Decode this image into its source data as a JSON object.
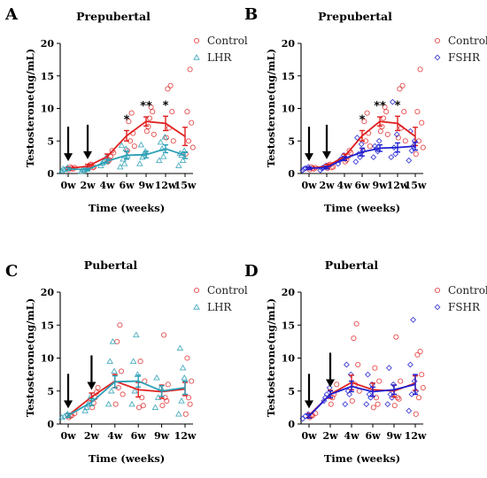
{
  "chart_data": [
    {
      "type": "line",
      "panel_label": "A",
      "title": "Prepubertal",
      "xlabel": "Time (weeks)",
      "ylabel": "Testosterone(ng/mL)",
      "ylim": [
        0,
        20
      ],
      "yticks": [
        "0",
        "5",
        "10",
        "15",
        "20"
      ],
      "categories": [
        "0w",
        "2w",
        "4w",
        "6w",
        "9w",
        "12w",
        "15w"
      ],
      "arrows_at": [
        "0w",
        "2w"
      ],
      "series": [
        {
          "name": "Control",
          "color": "#e02020",
          "marker": "circle",
          "values": [
            0.8,
            1.1,
            2.6,
            5.8,
            8.0,
            7.7,
            5.7
          ],
          "errors": [
            0.2,
            0.3,
            0.4,
            0.8,
            0.7,
            1.1,
            1.4
          ],
          "points": [
            [
              0.6,
              0.8,
              0.9,
              1.0,
              0.7
            ],
            [
              0.8,
              1.4,
              1.0,
              1.3,
              0.9
            ],
            [
              1.8,
              2.6,
              3.2,
              2.1,
              3.5
            ],
            [
              3.5,
              5.0,
              6.2,
              8.0,
              9.3,
              4.2
            ],
            [
              6.5,
              8.5,
              9.5,
              7.2,
              10.2,
              6.0
            ],
            [
              5.5,
              7.0,
              9.5,
              13.0,
              13.5,
              5.0
            ],
            [
              3.0,
              5.0,
              7.8,
              9.5,
              16.0,
              4.0
            ]
          ]
        },
        {
          "name": "LHR",
          "color": "#2a9fb5",
          "marker": "triangle",
          "values": [
            0.7,
            0.6,
            1.9,
            2.8,
            2.9,
            3.8,
            2.8
          ],
          "errors": [
            0.2,
            0.2,
            0.3,
            0.6,
            0.5,
            0.6,
            0.5
          ],
          "points": [
            [
              0.4,
              0.6,
              0.9,
              0.7
            ],
            [
              0.3,
              0.5,
              0.8,
              0.6
            ],
            [
              1.2,
              1.8,
              2.5,
              1.6
            ],
            [
              1.0,
              2.2,
              3.8,
              4.3,
              1.5,
              2.7
            ],
            [
              1.5,
              2.5,
              3.4,
              4.4,
              3.0
            ],
            [
              2.0,
              3.8,
              5.6,
              4.8,
              2.6
            ],
            [
              1.2,
              2.8,
              3.5,
              3.1,
              2.0
            ]
          ]
        }
      ],
      "annotations": [
        {
          "at": "6w",
          "text": "*"
        },
        {
          "at": "9w",
          "text": "**"
        },
        {
          "at": "12w",
          "text": "*"
        }
      ]
    },
    {
      "type": "line",
      "panel_label": "B",
      "title": "Prepubertal",
      "xlabel": "Time (weeks)",
      "ylabel": "Testosterone(ng/mL)",
      "ylim": [
        0,
        20
      ],
      "yticks": [
        "0",
        "5",
        "10",
        "15",
        "20"
      ],
      "categories": [
        "0w",
        "2w",
        "4w",
        "6w",
        "9w",
        "12w",
        "15w"
      ],
      "arrows_at": [
        "0w",
        "2w"
      ],
      "series": [
        {
          "name": "Control",
          "color": "#e02020",
          "marker": "circle",
          "values": [
            0.8,
            1.1,
            2.6,
            5.8,
            8.0,
            7.7,
            5.7
          ],
          "errors": [
            0.2,
            0.3,
            0.4,
            0.8,
            0.7,
            1.1,
            1.4
          ],
          "points": [
            [
              0.6,
              0.8,
              0.9,
              1.0,
              0.7
            ],
            [
              0.8,
              1.4,
              1.0,
              1.3,
              0.9
            ],
            [
              1.8,
              2.6,
              3.2,
              2.1,
              3.5
            ],
            [
              3.5,
              5.0,
              6.2,
              8.0,
              9.3,
              4.2
            ],
            [
              6.5,
              8.5,
              9.5,
              7.2,
              10.2,
              6.0
            ],
            [
              5.5,
              7.0,
              9.5,
              13.0,
              13.5,
              5.0
            ],
            [
              3.0,
              5.0,
              7.8,
              9.5,
              16.0,
              4.0
            ]
          ]
        },
        {
          "name": "FSHR",
          "color": "#1f1fd0",
          "marker": "diamond",
          "values": [
            0.8,
            0.9,
            2.3,
            3.3,
            3.9,
            4.0,
            4.2
          ],
          "errors": [
            0.2,
            0.2,
            0.3,
            0.6,
            0.5,
            0.7,
            0.6
          ],
          "points": [
            [
              0.5,
              0.8,
              1.0,
              0.7
            ],
            [
              0.5,
              0.9,
              1.2,
              0.8
            ],
            [
              1.5,
              2.2,
              2.8,
              2.0
            ],
            [
              1.8,
              3.0,
              4.5,
              5.5,
              2.5,
              3.5
            ],
            [
              2.5,
              3.8,
              5.0,
              4.2,
              3.4
            ],
            [
              2.5,
              4.0,
              6.0,
              11.0,
              3.0
            ],
            [
              2.0,
              3.5,
              5.0,
              6.5,
              4.2
            ]
          ]
        }
      ],
      "annotations": [
        {
          "at": "6w",
          "text": "*"
        },
        {
          "at": "9w",
          "text": "**"
        },
        {
          "at": "12w",
          "text": "*"
        }
      ]
    },
    {
      "type": "line",
      "panel_label": "C",
      "title": "Pubertal",
      "xlabel": "Time (weeks)",
      "ylabel": "Testosterone(ng/mL)",
      "ylim": [
        0,
        20
      ],
      "yticks": [
        "0",
        "5",
        "10",
        "15",
        "20"
      ],
      "categories": [
        "0w",
        "2w",
        "4w",
        "6w",
        "9w",
        "12w"
      ],
      "arrows_at": [
        "0w",
        "2w"
      ],
      "series": [
        {
          "name": "Control",
          "color": "#e02020",
          "marker": "circle",
          "values": [
            1.3,
            4.1,
            6.5,
            5.2,
            4.9,
            5.3
          ],
          "errors": [
            0.3,
            0.6,
            1.0,
            1.1,
            1.0,
            1.0
          ],
          "points": [
            [
              1.0,
              1.3,
              1.6,
              1.2
            ],
            [
              2.5,
              4.0,
              5.5,
              3.2,
              4.8
            ],
            [
              3.0,
              5.5,
              8.0,
              12.5,
              15.0,
              4.5
            ],
            [
              2.5,
              4.0,
              6.5,
              9.5,
              2.8
            ],
            [
              2.8,
              4.0,
              6.0,
              13.5,
              3.5
            ],
            [
              1.5,
              4.0,
              6.5,
              10.0,
              3.0
            ]
          ]
        },
        {
          "name": "LHR",
          "color": "#2a9fb5",
          "marker": "triangle",
          "values": [
            1.3,
            3.3,
            6.4,
            6.5,
            5.0,
            5.5
          ],
          "errors": [
            0.3,
            0.5,
            0.9,
            0.9,
            0.8,
            1.0
          ],
          "points": [
            [
              1.0,
              1.2,
              1.5
            ],
            [
              2.0,
              3.0,
              4.2,
              2.5
            ],
            [
              3.0,
              5.0,
              8.0,
              9.5,
              12.5
            ],
            [
              3.0,
              5.0,
              7.5,
              9.5,
              13.5
            ],
            [
              2.5,
              4.0,
              5.5,
              7.0
            ],
            [
              1.5,
              3.5,
              7.0,
              11.5,
              8.5
            ]
          ]
        }
      ]
    },
    {
      "type": "line",
      "panel_label": "D",
      "title": "Pubertal",
      "xlabel": "Time (weeks)",
      "ylabel": "Testosterone(ng/mL)",
      "ylim": [
        0,
        20
      ],
      "yticks": [
        "0",
        "5",
        "10",
        "15",
        "20"
      ],
      "categories": [
        "0w",
        "2w",
        "4w",
        "6w",
        "9w",
        "12w"
      ],
      "arrows_at": [
        "0w",
        "2w"
      ],
      "series": [
        {
          "name": "Control",
          "color": "#e02020",
          "marker": "circle",
          "values": [
            1.3,
            4.5,
            6.3,
            5.2,
            5.0,
            6.2
          ],
          "errors": [
            0.3,
            0.6,
            1.1,
            1.0,
            0.9,
            1.1
          ],
          "points": [
            [
              1.0,
              1.3,
              1.6,
              1.2
            ],
            [
              3.0,
              4.5,
              6.0,
              4.0
            ],
            [
              3.5,
              6.0,
              9.0,
              13.0,
              15.2,
              5.0
            ],
            [
              2.5,
              4.0,
              6.5,
              8.5,
              3.0
            ],
            [
              2.8,
              4.0,
              6.5,
              13.2,
              3.8
            ],
            [
              1.5,
              4.0,
              7.5,
              10.5,
              11.0,
              5.5
            ]
          ]
        },
        {
          "name": "FSHR",
          "color": "#1f1fd0",
          "marker": "diamond",
          "values": [
            1.2,
            4.5,
            5.7,
            4.9,
            5.2,
            6.0
          ],
          "errors": [
            0.3,
            0.5,
            0.8,
            0.7,
            0.7,
            1.5
          ],
          "points": [
            [
              0.8,
              1.2,
              1.5
            ],
            [
              3.5,
              4.5,
              5.5,
              4.0
            ],
            [
              3.0,
              5.0,
              7.5,
              9.0,
              4.5
            ],
            [
              3.0,
              4.5,
              6.0,
              7.5,
              4.0
            ],
            [
              3.0,
              4.5,
              6.0,
              8.5,
              4.0
            ],
            [
              2.0,
              4.5,
              6.5,
              9.0,
              15.8,
              5.0
            ]
          ]
        }
      ]
    }
  ]
}
